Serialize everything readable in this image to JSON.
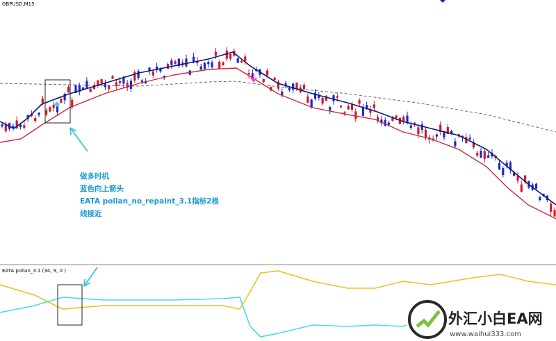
{
  "chart_window": {
    "symbol": "GBPUSD,M15"
  },
  "annotation": {
    "lines": [
      "做多时机",
      "蓝色向上箭头",
      "EATA pollan_no_repaint_3.1指标2根",
      "线接近"
    ]
  },
  "indicator_window": {
    "label": "EATA pollan_3.1 (34, 9, 0 )"
  },
  "watermark": {
    "name": "外汇小白EA网",
    "url": "www.waihui333.com"
  }
}
